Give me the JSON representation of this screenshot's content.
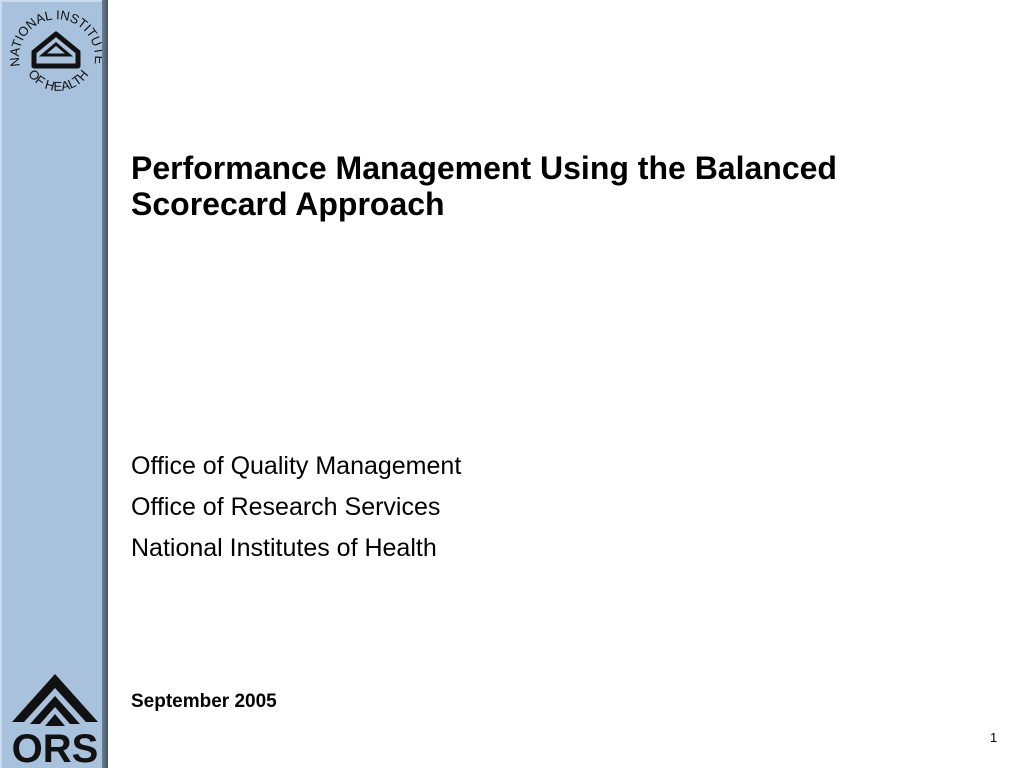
{
  "slide": {
    "title": "Performance Management Using the Balanced Scorecard Approach",
    "organizations": [
      "Office of Quality Management",
      "Office of Research Services",
      "National Institutes of Health"
    ],
    "date": "September 2005",
    "page_number": "1"
  },
  "logos": {
    "nih": {
      "text_top": "NATIONAL INSTITUTES",
      "text_bottom": "OF HEALTH"
    },
    "ors": {
      "text": "ORS"
    }
  },
  "colors": {
    "sidebar": "#a8c2dd",
    "sidebar_edge": "#55626f",
    "text": "#000000"
  }
}
